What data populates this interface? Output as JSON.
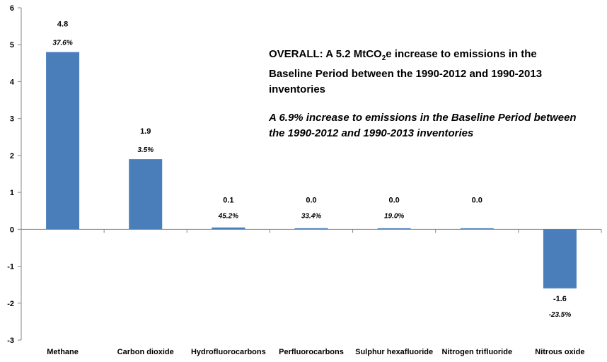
{
  "chart_data": {
    "type": "bar",
    "categories": [
      "Methane",
      "Carbon dioxide",
      "Hydrofluorocarbons",
      "Perfluorocarbons",
      "Sulphur hexafluoride",
      "Nitrogen trifluoride",
      "Nitrous oxide"
    ],
    "values": [
      4.8,
      1.9,
      0.05,
      0.03,
      0.01,
      0.0,
      -1.6
    ],
    "value_labels": [
      "4.8",
      "1.9",
      "0.1",
      "0.0",
      "0.0",
      "0.0",
      "-1.6"
    ],
    "percent_labels": [
      "37.6%",
      "3.5%",
      "45.2%",
      "33.4%",
      "19.0%",
      "",
      "-23.5%"
    ],
    "ylim": [
      -3,
      6
    ],
    "yticks": [
      6,
      5,
      4,
      3,
      2,
      1,
      0,
      -1,
      -2,
      -3
    ],
    "bar_color": "#4a7ebb",
    "grid": false
  },
  "annotation": {
    "line1_prefix": "OVERALL:  A 5.2 MtCO",
    "line1_sub": "2",
    "line1_suffix": "e increase to emissions in the Baseline Period between the 1990-2012 and 1990-2013 inventories",
    "line2": "A 6.9% increase to emissions in the Baseline Period between the 1990-2012 and 1990-2013 inventories"
  }
}
